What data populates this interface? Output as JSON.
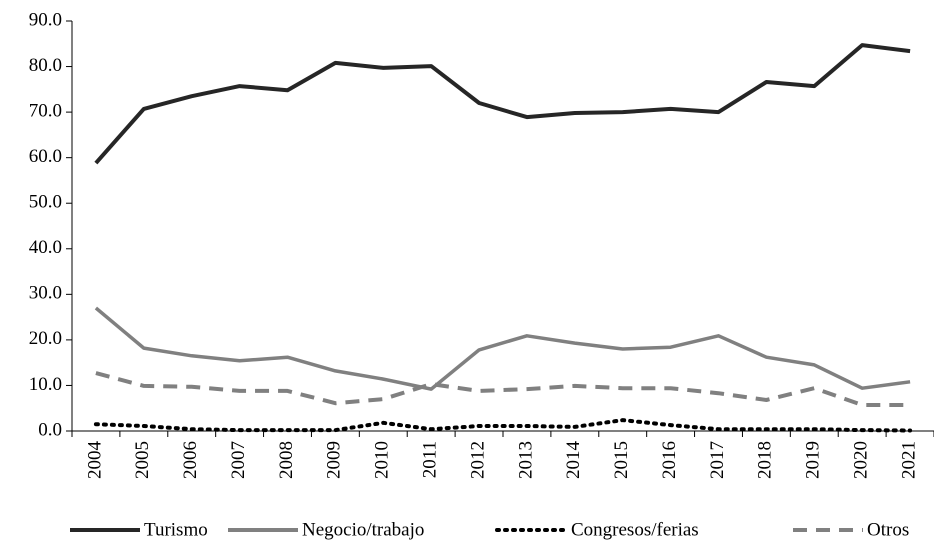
{
  "chart_data": {
    "type": "line",
    "categories": [
      "2004",
      "2005",
      "2006",
      "2007",
      "2008",
      "2009",
      "2010",
      "2011",
      "2012",
      "2013",
      "2014",
      "2015",
      "2016",
      "2017",
      "2018",
      "2019",
      "2020",
      "2021"
    ],
    "series": [
      {
        "name": "Turismo",
        "color": "#262626",
        "style": "solid",
        "values": [
          58.8,
          70.7,
          73.5,
          75.7,
          74.8,
          80.8,
          79.7,
          80.1,
          72.0,
          68.9,
          69.8,
          70.0,
          70.7,
          70.0,
          76.6,
          75.7,
          84.7,
          83.4
        ]
      },
      {
        "name": "Negocio/trabajo",
        "color": "#808080",
        "style": "solid",
        "values": [
          27.0,
          18.2,
          16.5,
          15.4,
          16.2,
          13.2,
          11.4,
          9.2,
          17.8,
          20.9,
          19.3,
          18.0,
          18.4,
          20.9,
          16.2,
          14.5,
          9.4,
          10.8
        ]
      },
      {
        "name": "Congresos/ferias",
        "color": "#000000",
        "style": "dotted",
        "values": [
          1.5,
          1.1,
          0.4,
          0.2,
          0.2,
          0.2,
          1.8,
          0.4,
          1.1,
          1.1,
          0.9,
          2.4,
          1.3,
          0.4,
          0.4,
          0.4,
          0.2,
          0.1
        ]
      },
      {
        "name": "Otros",
        "color": "#808080",
        "style": "dashed",
        "values": [
          12.7,
          9.9,
          9.7,
          8.8,
          8.8,
          6.1,
          7.0,
          10.3,
          8.8,
          9.2,
          9.9,
          9.4,
          9.4,
          8.3,
          6.8,
          9.4,
          5.7,
          5.7
        ]
      }
    ],
    "ylim": [
      0,
      90
    ],
    "yticks": [
      {
        "value": 0,
        "label": "0.0"
      },
      {
        "value": 10,
        "label": "10.0"
      },
      {
        "value": 20,
        "label": "20.0"
      },
      {
        "value": 30,
        "label": "30.0"
      },
      {
        "value": 40,
        "label": "40.0"
      },
      {
        "value": 50,
        "label": "50.0"
      },
      {
        "value": 60,
        "label": "60.0"
      },
      {
        "value": 70,
        "label": "70.0"
      },
      {
        "value": 80,
        "label": "80.0"
      },
      {
        "value": 90,
        "label": "90.0"
      }
    ],
    "grid": false,
    "legend": "bottom"
  }
}
